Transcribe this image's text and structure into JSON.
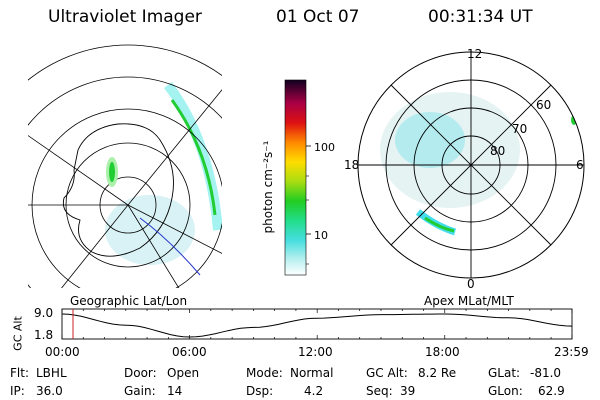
{
  "header": {
    "instrument": "Ultraviolet Imager",
    "date": "01 Oct 07",
    "time": "00:31:34 UT"
  },
  "left_panel": {
    "caption": "Geographic Lat/Lon"
  },
  "right_panel": {
    "caption": "Apex MLat/MLT",
    "mlt_labels": [
      "12",
      "18",
      "6",
      "0"
    ],
    "lat_labels": [
      "60",
      "70",
      "80"
    ]
  },
  "colorbar": {
    "label": "photon cm⁻²s⁻¹",
    "scale": "log",
    "ticks": [
      "100",
      "10"
    ]
  },
  "alt_plot": {
    "ylabel": "GC Alt",
    "yticks": [
      "9.0",
      "1.8"
    ],
    "xticks": [
      "00:00",
      "06:00",
      "12:00",
      "18:00",
      "23:59"
    ]
  },
  "info": {
    "flt_label": "Flt:",
    "flt_value": "LBHL",
    "ip_label": "IP:",
    "ip_value": "36.0",
    "door_label": "Door:",
    "door_value": "Open",
    "gain_label": "Gain:",
    "gain_value": "14",
    "mode_label": "Mode:",
    "mode_value": "Normal",
    "dsp_label": "Dsp:",
    "dsp_value": "4.2",
    "gcalt_label": "GC Alt:",
    "gcalt_value": "8.2 Re",
    "seq_label": "Seq:",
    "seq_value": "39",
    "glat_label": "GLat:",
    "glat_value": "-81.0",
    "glon_label": "GLon:",
    "glon_value": "62.9"
  },
  "colors": {
    "cyan": "#66e0ee",
    "green": "#22cc33",
    "orbit_line": "#000000",
    "current_time_marker": "#cc2222"
  },
  "chart_data": {
    "type": "line",
    "title": "",
    "xlabel": "",
    "ylabel": "GC Alt",
    "x": [
      "00:00",
      "03:00",
      "06:00",
      "09:00",
      "12:00",
      "15:00",
      "18:00",
      "21:00",
      "23:59"
    ],
    "series": [
      {
        "values": [
          9.0,
          5.5,
          1.8,
          4.8,
          7.7,
          8.8,
          9.0,
          7.8,
          5.2
        ]
      }
    ],
    "ylim": [
      1.8,
      9.0
    ],
    "current_time": "00:31"
  }
}
